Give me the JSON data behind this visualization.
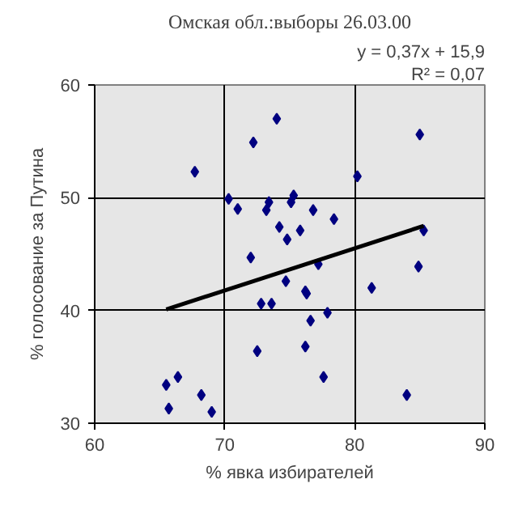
{
  "chart_data": {
    "type": "scatter",
    "title": "Омская обл.:выборы 26.03.00",
    "xlabel": "% явка избирателей",
    "ylabel": "% голосование за Путина",
    "annotations": [
      "y = 0,37x + 15,9",
      "R² = 0,07"
    ],
    "series": [
      {
        "color": "#000080",
        "marker": "diamond",
        "x": [
          67.7,
          72.2,
          74.0,
          70.3,
          71.0,
          73.4,
          73.2,
          74.2,
          74.8,
          72.0,
          85.0,
          80.2,
          75.3,
          75.1,
          76.8,
          78.4,
          75.8,
          85.3,
          74.7,
          72.8,
          73.6,
          72.5,
          65.5,
          66.4,
          65.7,
          68.2,
          69.0,
          77.2,
          84.9,
          76.2,
          76.3,
          81.3,
          77.9,
          76.6,
          76.2,
          77.6,
          84.0
        ],
        "values": [
          52.3,
          54.9,
          57.0,
          49.9,
          49.0,
          49.6,
          48.9,
          47.4,
          46.3,
          44.7,
          55.6,
          51.9,
          50.2,
          49.6,
          48.9,
          48.1,
          47.1,
          47.1,
          42.6,
          40.6,
          40.6,
          36.4,
          33.4,
          34.1,
          31.3,
          32.5,
          31.0,
          44.1,
          43.9,
          41.7,
          41.5,
          42.0,
          39.8,
          39.1,
          36.8,
          34.1,
          32.5
        ]
      },
      {
        "type": "line",
        "color": "#000000",
        "marker": "none",
        "x": [
          65.5,
          85.3
        ],
        "values": [
          40.1,
          47.5
        ]
      }
    ],
    "xlim": [
      60,
      90
    ],
    "ylim": [
      30,
      60
    ],
    "xticks": [
      60,
      70,
      80,
      90
    ],
    "yticks": [
      30,
      40,
      50,
      60
    ],
    "grid": true
  }
}
